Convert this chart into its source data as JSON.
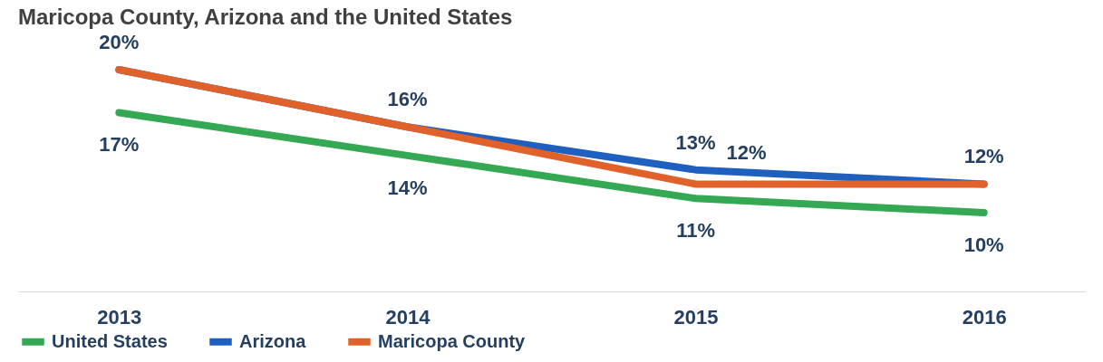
{
  "chart_data": {
    "type": "line",
    "title": "Maricopa County, Arizona and the United States",
    "categories": [
      "2013",
      "2014",
      "2015",
      "2016"
    ],
    "series": [
      {
        "name": "United States",
        "color": "#34a853",
        "values": [
          17,
          14,
          11,
          10
        ],
        "value_labels": [
          "17%",
          "14%",
          "11%",
          "10%"
        ]
      },
      {
        "name": "Arizona",
        "color": "#1f5fbf",
        "values": [
          20,
          16,
          13,
          12
        ],
        "value_labels": [
          "20%",
          "16%",
          "13%",
          "12%"
        ]
      },
      {
        "name": "Maricopa County",
        "color": "#e0622a",
        "values": [
          20,
          16,
          12,
          12
        ],
        "value_labels": [
          null,
          null,
          "12%",
          null
        ]
      }
    ],
    "legend": "bottom",
    "grid": false,
    "marker": "none",
    "line_style": "solid"
  }
}
